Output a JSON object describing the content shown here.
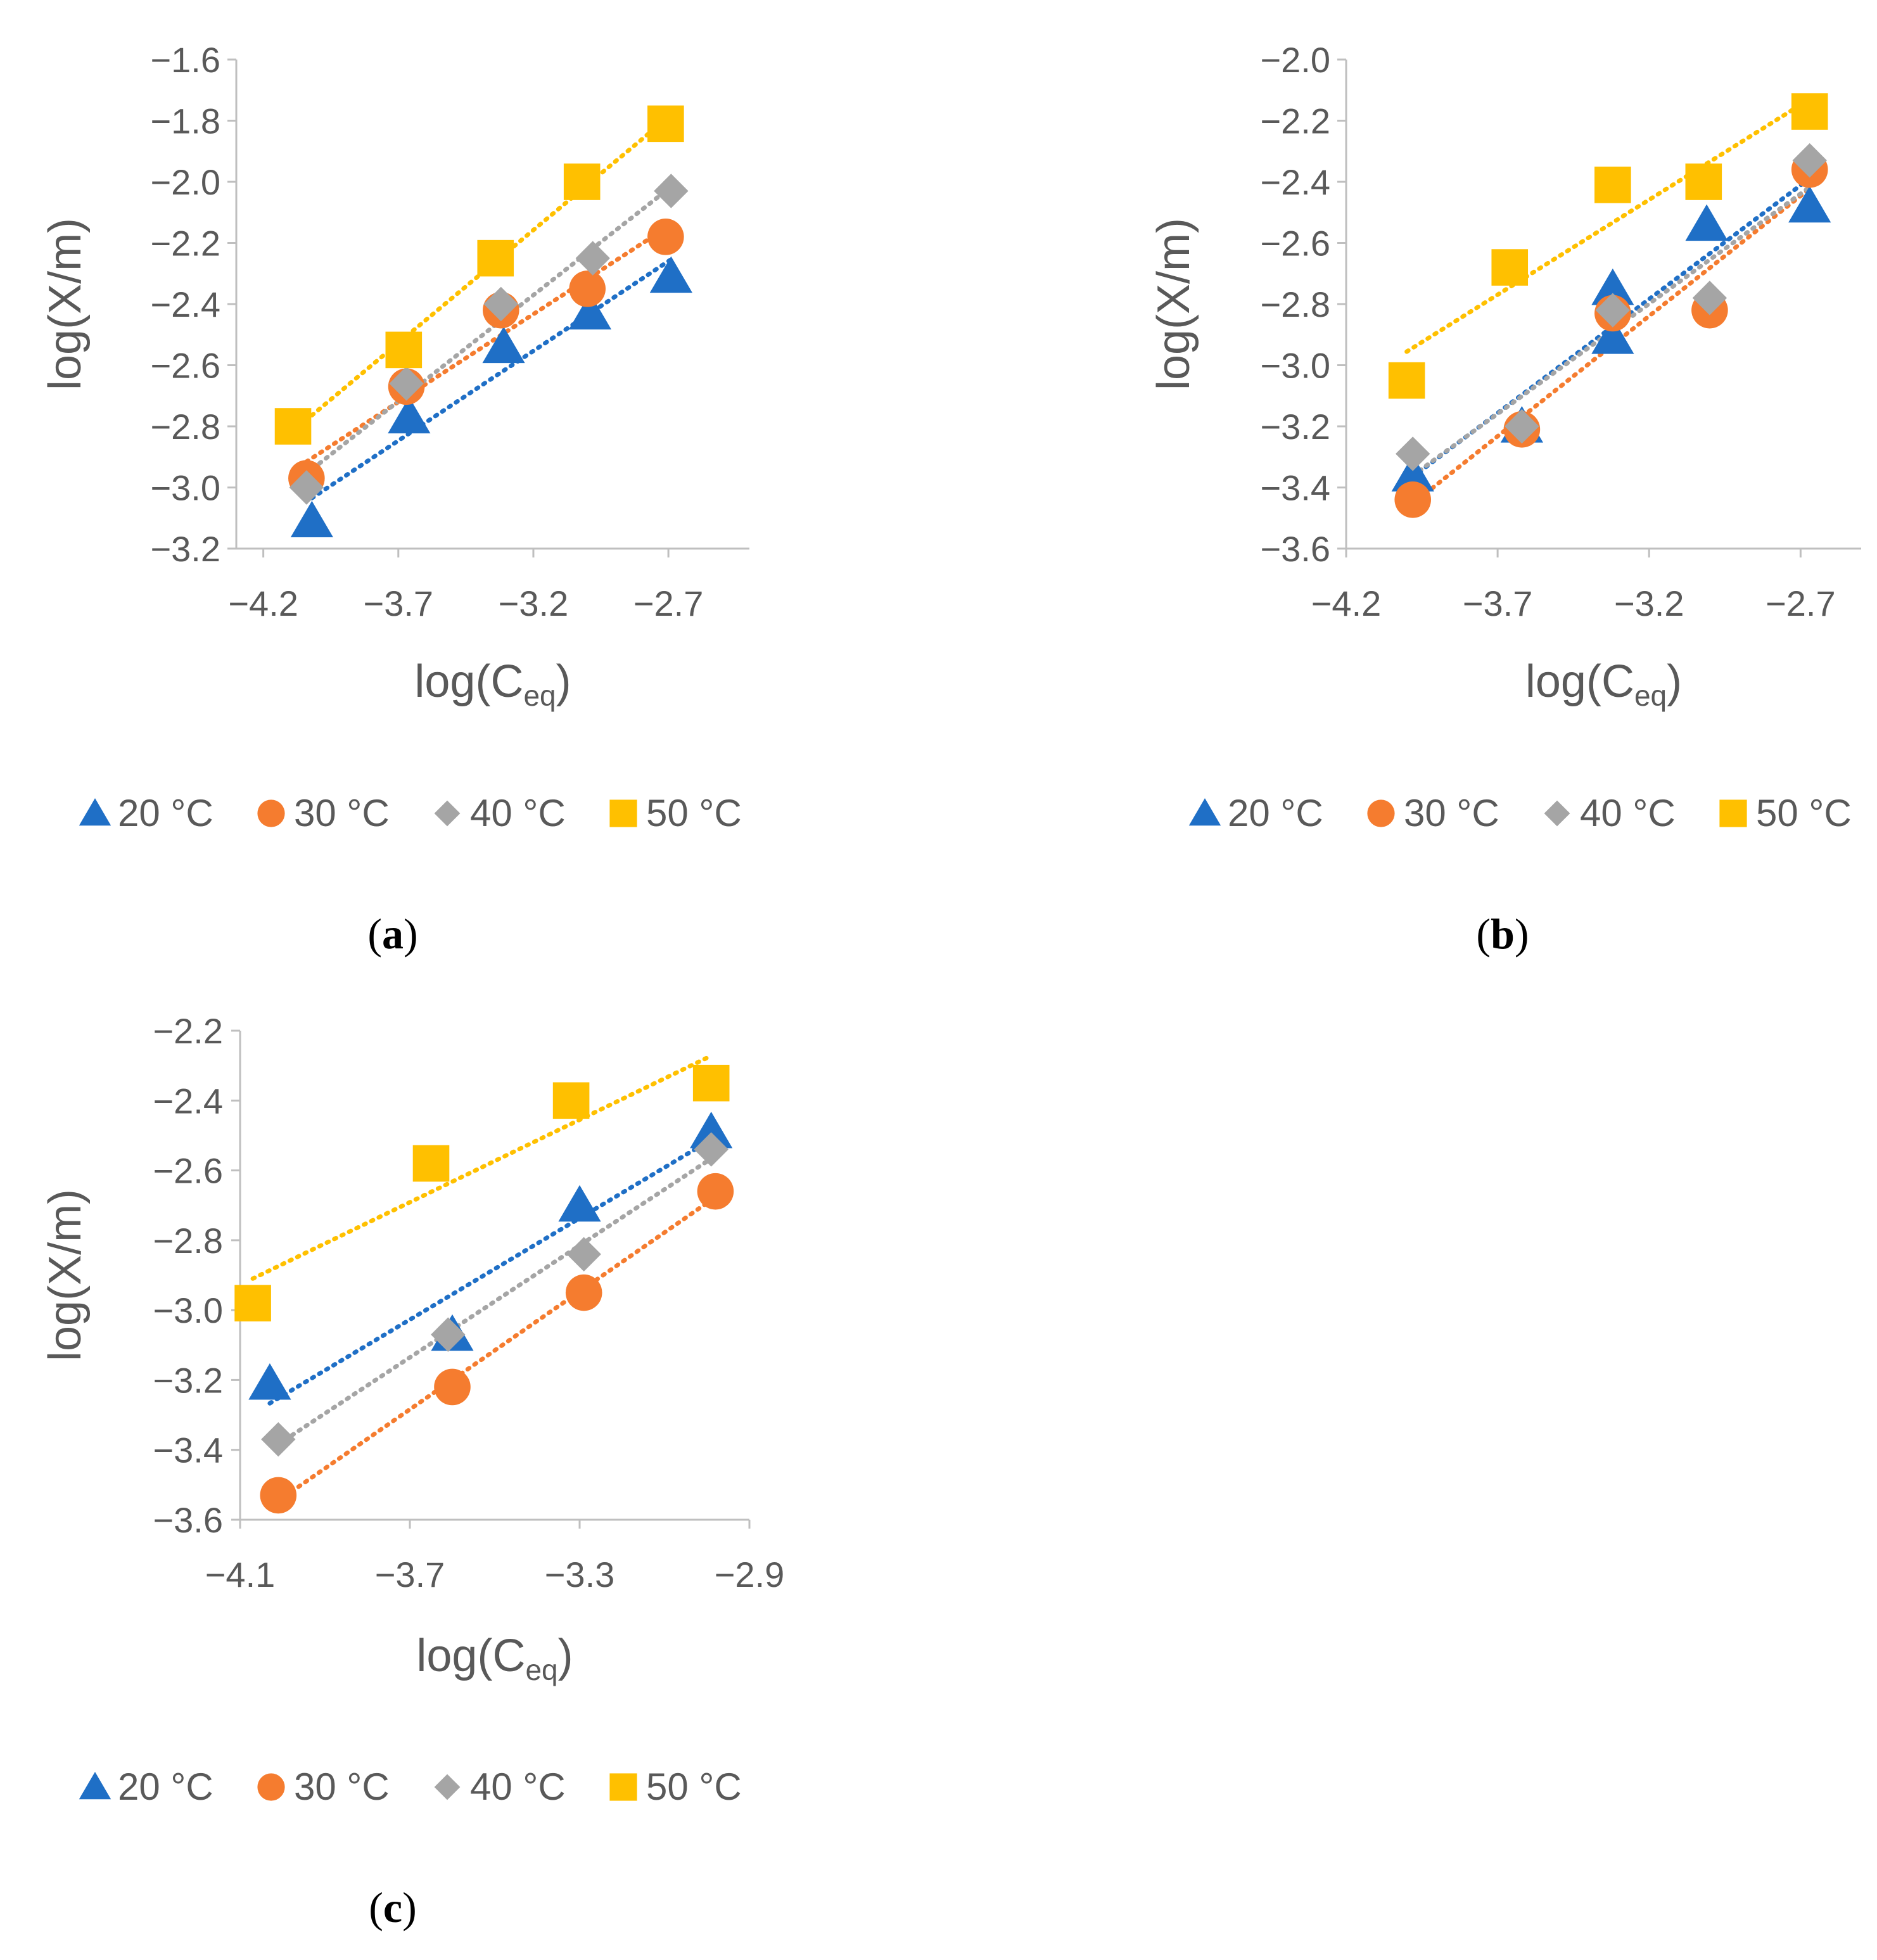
{
  "colors": {
    "series_20": "#1f6fc6",
    "series_30": "#f57c2f",
    "series_40": "#a5a5a5",
    "series_50": "#ffc000",
    "axis": "#bfbfbf",
    "text": "#595959"
  },
  "legend": [
    "20 °C",
    "30 °C",
    "40 °C",
    "50 °C"
  ],
  "chart_data": [
    {
      "type": "scatter",
      "panel": "a",
      "panel_open": "(",
      "panel_close": ")",
      "xlabel_main": "log(C",
      "xlabel_sub": "eq",
      "xlabel_end": ")",
      "ylabel": "log(X/m)",
      "xlim": [
        -4.3,
        -2.4
      ],
      "ylim": [
        -3.2,
        -1.6
      ],
      "xticks": [
        -4.2,
        -3.7,
        -3.2,
        -2.7
      ],
      "xtick_labels": [
        "−4.2",
        "−3.7",
        "−3.2",
        "−2.7"
      ],
      "yticks": [
        -3.2,
        -3.0,
        -2.8,
        -2.6,
        -2.4,
        -2.2,
        -2.0,
        -1.8,
        -1.6
      ],
      "ytick_labels": [
        "−3.2",
        "−3.0",
        "−2.8",
        "−2.6",
        "−2.4",
        "−2.2",
        "−2.0",
        "−1.8",
        "−1.6"
      ],
      "series": [
        {
          "name": "20 °C",
          "marker": "triangle",
          "x": [
            -4.02,
            -3.66,
            -3.31,
            -2.99,
            -2.69
          ],
          "y": [
            -3.11,
            -2.77,
            -2.54,
            -2.43,
            -2.31
          ]
        },
        {
          "name": "30 °C",
          "marker": "circle",
          "x": [
            -4.04,
            -3.67,
            -3.32,
            -3.0,
            -2.71
          ],
          "y": [
            -2.97,
            -2.67,
            -2.42,
            -2.35,
            -2.18
          ]
        },
        {
          "name": "40 °C",
          "marker": "diamond",
          "x": [
            -4.04,
            -3.67,
            -3.32,
            -2.98,
            -2.69
          ],
          "y": [
            -3.0,
            -2.66,
            -2.4,
            -2.25,
            -2.03
          ]
        },
        {
          "name": "50 °C",
          "marker": "square",
          "x": [
            -4.09,
            -3.68,
            -3.34,
            -3.02,
            -2.71
          ],
          "y": [
            -2.8,
            -2.55,
            -2.25,
            -2.0,
            -1.81
          ]
        }
      ]
    },
    {
      "type": "scatter",
      "panel": "b",
      "panel_open": "(",
      "panel_close": ")",
      "xlabel_main": "log(C",
      "xlabel_sub": "eq",
      "xlabel_end": ")",
      "ylabel": "log(X/m)",
      "xlim": [
        -4.2,
        -2.5
      ],
      "ylim": [
        -3.6,
        -2.0
      ],
      "xticks": [
        -4.2,
        -3.7,
        -3.2,
        -2.7
      ],
      "xtick_labels": [
        "−4.2",
        "−3.7",
        "−3.2",
        "−2.7"
      ],
      "yticks": [
        -3.6,
        -3.4,
        -3.2,
        -3.0,
        -2.8,
        -2.6,
        -2.4,
        -2.2,
        -2.0
      ],
      "ytick_labels": [
        "−3.6",
        "−3.4",
        "−3.2",
        "−3.0",
        "−2.8",
        "−2.6",
        "−2.4",
        "−2.2",
        "−2.0"
      ],
      "series": [
        {
          "name": "20 °C",
          "marker": "triangle",
          "x": [
            -3.98,
            -3.62,
            -3.32,
            -3.32,
            -3.01,
            -2.67
          ],
          "y": [
            -3.36,
            -3.2,
            -2.75,
            -2.91,
            -2.54,
            -2.48
          ]
        },
        {
          "name": "30 °C",
          "marker": "circle",
          "x": [
            -3.98,
            -3.62,
            -3.32,
            -3.0,
            -2.67
          ],
          "y": [
            -3.44,
            -3.21,
            -2.83,
            -2.82,
            -2.36
          ]
        },
        {
          "name": "40 °C",
          "marker": "diamond",
          "x": [
            -3.98,
            -3.62,
            -3.32,
            -3.0,
            -2.67
          ],
          "y": [
            -3.29,
            -3.2,
            -2.82,
            -2.78,
            -2.33
          ]
        },
        {
          "name": "50 °C",
          "marker": "square",
          "x": [
            -4.0,
            -3.66,
            -3.32,
            -3.02,
            -2.67
          ],
          "y": [
            -3.05,
            -2.68,
            -2.41,
            -2.4,
            -2.17
          ]
        }
      ]
    },
    {
      "type": "scatter",
      "panel": "c",
      "panel_open": "(",
      "panel_close": ")",
      "xlabel_main": "log(C",
      "xlabel_sub": "eq",
      "xlabel_end": ")",
      "ylabel": "log(X/m)",
      "xlim": [
        -4.1,
        -2.9
      ],
      "ylim": [
        -3.6,
        -2.2
      ],
      "xticks": [
        -4.1,
        -3.7,
        -3.3,
        -2.9
      ],
      "xtick_labels": [
        "−4.1",
        "−3.7",
        "−3.3",
        "−2.9"
      ],
      "yticks": [
        -3.6,
        -3.4,
        -3.2,
        -3.0,
        -2.8,
        -2.6,
        -2.4,
        -2.2
      ],
      "ytick_labels": [
        "−3.6",
        "−3.4",
        "−3.2",
        "−3.0",
        "−2.8",
        "−2.6",
        "−2.4",
        "−2.2"
      ],
      "series": [
        {
          "name": "20 °C",
          "marker": "triangle",
          "x": [
            -4.03,
            -3.6,
            -3.3,
            -2.99
          ],
          "y": [
            -3.21,
            -3.07,
            -2.7,
            -2.49
          ]
        },
        {
          "name": "30 °C",
          "marker": "circle",
          "x": [
            -4.01,
            -3.6,
            -3.29,
            -2.98
          ],
          "y": [
            -3.53,
            -3.22,
            -2.95,
            -2.66
          ]
        },
        {
          "name": "40 °C",
          "marker": "diamond",
          "x": [
            -4.01,
            -3.61,
            -3.29,
            -2.99
          ],
          "y": [
            -3.37,
            -3.07,
            -2.84,
            -2.54
          ]
        },
        {
          "name": "50 °C",
          "marker": "square",
          "x": [
            -4.07,
            -3.65,
            -3.32,
            -2.99
          ],
          "y": [
            -2.98,
            -2.58,
            -2.4,
            -2.35
          ]
        }
      ]
    }
  ]
}
